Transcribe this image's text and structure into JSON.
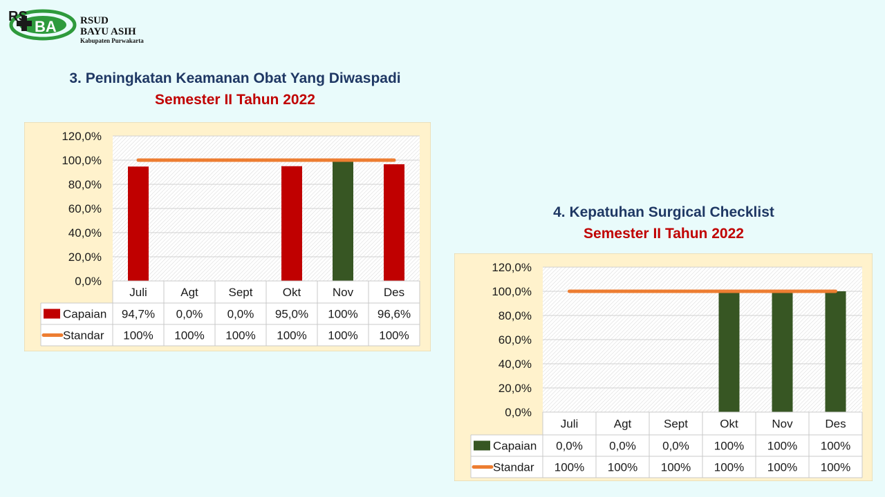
{
  "header": {
    "logo_line1": "RSUD",
    "logo_line2": "BAYU ASIH",
    "logo_line3": "Kabupaten Purwakarta"
  },
  "colors": {
    "background": "#e9fbfb",
    "panel": "#fff2cc",
    "standar": "#ed7d31",
    "capaian_red": "#c00000",
    "capaian_green": "#375623",
    "title": "#1f3864",
    "subtitle": "#c00000"
  },
  "chart_data": [
    {
      "type": "bar",
      "title": "3. Peningkatan Keamanan Obat Yang Diwaspadi",
      "subtitle": "Semester II Tahun 2022",
      "categories": [
        "Juli",
        "Agt",
        "Sept",
        "Okt",
        "Nov",
        "Des"
      ],
      "series": [
        {
          "name": "Capaian",
          "type": "bar",
          "values": [
            94.7,
            0.0,
            0.0,
            95.0,
            100,
            96.6
          ],
          "labels": [
            "94,7%",
            "0,0%",
            "0,0%",
            "95,0%",
            "100%",
            "96,6%"
          ],
          "bar_colors": [
            "#c00000",
            "#c00000",
            "#c00000",
            "#c00000",
            "#375623",
            "#c00000"
          ]
        },
        {
          "name": "Standar",
          "type": "line",
          "values": [
            100,
            100,
            100,
            100,
            100,
            100
          ],
          "labels": [
            "100%",
            "100%",
            "100%",
            "100%",
            "100%",
            "100%"
          ]
        }
      ],
      "yticks": [
        "0,0%",
        "20,0%",
        "40,0%",
        "60,0%",
        "80,0%",
        "100,0%",
        "120,0%"
      ],
      "ylim": [
        0,
        120
      ],
      "legend_swatch_color": "#c00000",
      "data_table": true,
      "grid": true
    },
    {
      "type": "bar",
      "title": "4. Kepatuhan Surgical Checklist",
      "subtitle": "Semester II Tahun 2022",
      "categories": [
        "Juli",
        "Agt",
        "Sept",
        "Okt",
        "Nov",
        "Des"
      ],
      "series": [
        {
          "name": "Capaian",
          "type": "bar",
          "values": [
            0.0,
            0.0,
            0.0,
            100,
            100,
            100
          ],
          "labels": [
            "0,0%",
            "0,0%",
            "0,0%",
            "100%",
            "100%",
            "100%"
          ],
          "bar_colors": [
            "#375623",
            "#375623",
            "#375623",
            "#375623",
            "#375623",
            "#375623"
          ]
        },
        {
          "name": "Standar",
          "type": "line",
          "values": [
            100,
            100,
            100,
            100,
            100,
            100
          ],
          "labels": [
            "100%",
            "100%",
            "100%",
            "100%",
            "100%",
            "100%"
          ]
        }
      ],
      "yticks": [
        "0,0%",
        "20,0%",
        "40,0%",
        "60,0%",
        "80,0%",
        "100,0%",
        "120,0%"
      ],
      "ylim": [
        0,
        120
      ],
      "legend_swatch_color": "#375623",
      "data_table": true,
      "grid": true
    }
  ]
}
